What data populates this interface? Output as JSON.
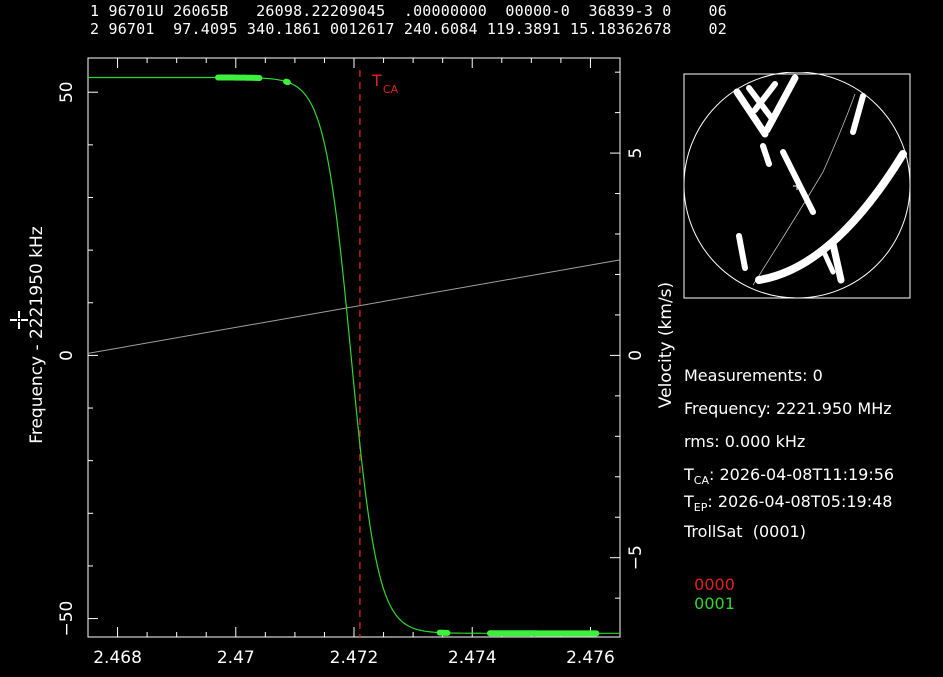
{
  "tle": {
    "line1": "1 96701U 26065B   26098.22209045  .00000000  00000-0  36839-3 0    06",
    "line2": "2 96701  97.4095 340.1861 0012617 240.6084 119.3891 15.18362678    02"
  },
  "chart_data": {
    "type": "line",
    "xlabel": "",
    "ylabel": "Frequency - 2221950 kHz",
    "y2label": "Velocity (km/s)",
    "xlim": [
      2.4675,
      2.4765
    ],
    "ylim": [
      -53.5,
      56.5
    ],
    "y2lim": [
      -6.96,
      7.35
    ],
    "x_ticks": [
      {
        "value": 2.468,
        "label": "2.468"
      },
      {
        "value": 2.47,
        "label": "2.47"
      },
      {
        "value": 2.472,
        "label": "2.472"
      },
      {
        "value": 2.474,
        "label": "2.474"
      },
      {
        "value": 2.476,
        "label": "2.476"
      }
    ],
    "y_ticks": [
      {
        "value": 50,
        "label": "50"
      },
      {
        "value": 0,
        "label": "0"
      },
      {
        "value": -50,
        "label": "−50"
      }
    ],
    "y2_ticks": [
      {
        "value": 5,
        "label": "5"
      },
      {
        "value": 0,
        "label": "0"
      },
      {
        "value": -5,
        "label": "−5"
      }
    ],
    "tca": {
      "x": 2.4721,
      "label": "T",
      "sub": "CA",
      "color": "#e02020"
    },
    "doppler_model": {
      "center": 2.47195,
      "amplitude": 52.8,
      "width": 0.00045,
      "color": "#2ed82e"
    },
    "velocity_line": {
      "x": [
        2.4675,
        2.4765
      ],
      "y": [
        0.05,
        2.36
      ],
      "color": "#a0a0a0"
    },
    "measurement_segments": [
      {
        "x_start": 2.4697,
        "x_end": 2.4704
      },
      {
        "x_start": 2.47085,
        "x_end": 2.47088
      },
      {
        "x_start": 2.47345,
        "x_end": 2.47358
      },
      {
        "x_start": 2.4743,
        "x_end": 2.4761
      }
    ],
    "measurement_color": "#3ef03e"
  },
  "info": {
    "measurements": "Measurements: 0",
    "frequency": "Frequency: 2221.950 MHz",
    "rms": "rms: 0.000 kHz",
    "tca_label": "T",
    "tca_sub": "CA",
    "tca_value": ": 2026-04-08T11:19:56",
    "tep_label": "T",
    "tep_sub": "EP",
    "tep_value": ": 2026-04-08T05:19:48",
    "satellite": "TrollSat  (0001)",
    "code_red": "0000",
    "code_green": "0001",
    "code_red_color": "#e02020",
    "code_green_color": "#2ed82e"
  }
}
